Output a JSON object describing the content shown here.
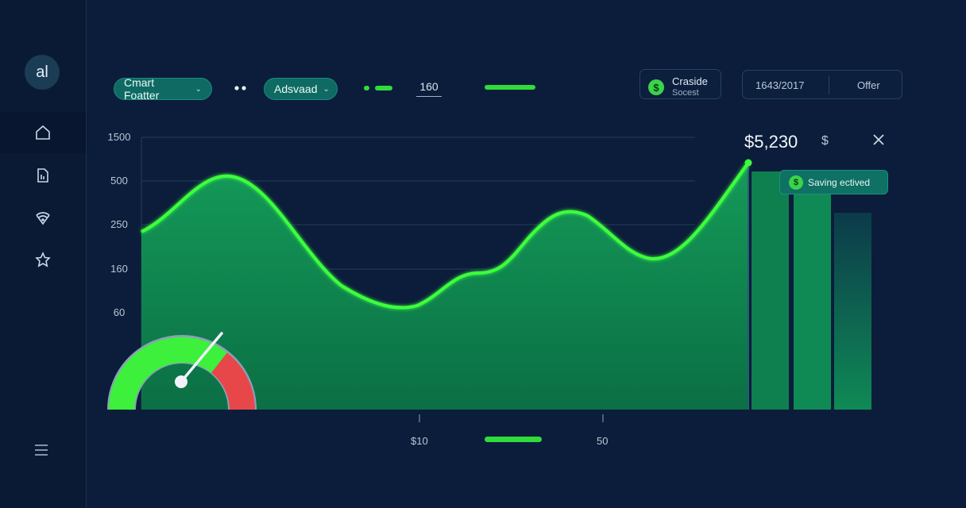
{
  "sidebar": {
    "avatar_initials": "al",
    "items": [
      {
        "icon": "home-icon",
        "active": true
      },
      {
        "icon": "document-icon",
        "active": false
      },
      {
        "icon": "wifi-shield-icon",
        "active": false
      },
      {
        "icon": "star-icon",
        "active": false
      }
    ],
    "menu_icon": "menu-icon"
  },
  "toolbar": {
    "filter_label": "Cmart Foatter",
    "advanced_label": "Adsvaad",
    "value_input": "160",
    "card_title": "Craside",
    "card_subtitle": "Socest",
    "date": "1643/2017",
    "offer_label": "Offer"
  },
  "summary": {
    "amount": "$5,230",
    "currency_symbol": "$",
    "badge_label": "Saving ectived"
  },
  "colors": {
    "background": "#0b1d3a",
    "accent_green": "#3cff3c",
    "area_fill": "#0e8a52",
    "gauge_red": "#e8474a",
    "teal_pill": "#0f6a63"
  },
  "chart_data": {
    "type": "area",
    "y_tick_labels": [
      "1500",
      "500",
      "250",
      "160",
      "60"
    ],
    "x_tick_labels": [
      "$10",
      "50"
    ],
    "x": [
      0,
      1,
      2,
      3,
      4,
      5,
      6,
      7,
      8,
      9,
      10,
      11,
      12,
      13,
      14
    ],
    "values": [
      1000,
      1400,
      1440,
      1100,
      420,
      180,
      80,
      300,
      250,
      560,
      780,
      500,
      500,
      900,
      1460
    ],
    "bars": [
      1400,
      1400,
      1150
    ],
    "gauge_level": 0.75
  }
}
